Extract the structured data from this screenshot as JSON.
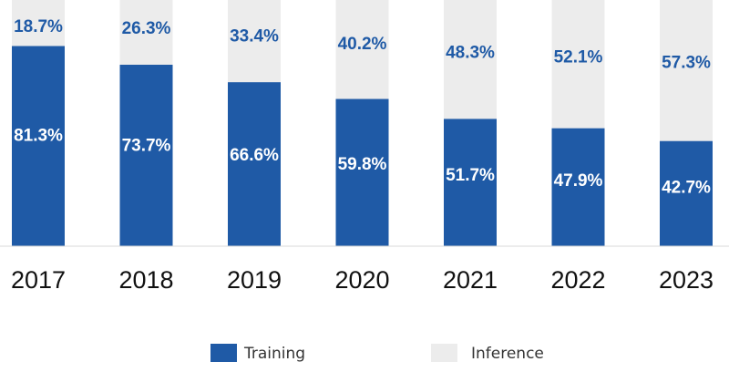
{
  "chart_data": {
    "type": "bar",
    "stacked": true,
    "normalized_percent": true,
    "categories": [
      "2017",
      "2018",
      "2019",
      "2020",
      "2021",
      "2022",
      "2023"
    ],
    "series": [
      {
        "name": "Training",
        "values": [
          81.3,
          73.7,
          66.6,
          59.8,
          51.7,
          47.9,
          42.7
        ],
        "labels": [
          "81.3%",
          "73.7%",
          "66.6%",
          "59.8%",
          "51.7%",
          "47.9%",
          "42.7%"
        ],
        "color": "#1f5aa6",
        "label_color": "#ffffff"
      },
      {
        "name": "Inference",
        "values": [
          18.7,
          26.3,
          33.4,
          40.2,
          48.3,
          52.1,
          57.3
        ],
        "labels": [
          "18.7%",
          "26.3%",
          "33.4%",
          "40.2%",
          "48.3%",
          "52.1%",
          "57.3%"
        ],
        "color": "#ececec",
        "label_color": "#1f5aa6"
      }
    ],
    "ylim": [
      0,
      100
    ],
    "grid": false,
    "legend_position": "bottom-center"
  }
}
